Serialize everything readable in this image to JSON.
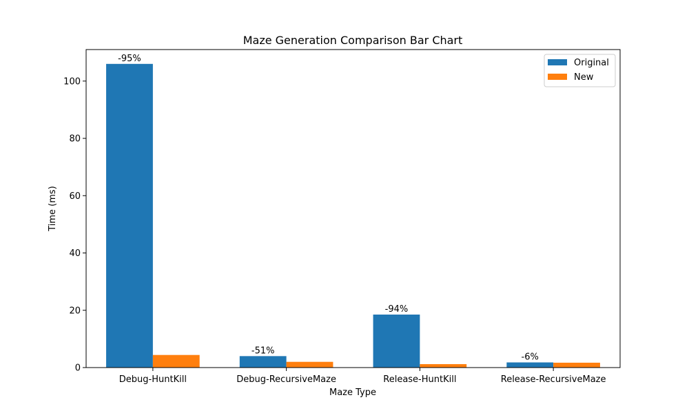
{
  "chart_data": {
    "type": "bar",
    "title": "Maze Generation Comparison Bar Chart",
    "xlabel": "Maze Type",
    "ylabel": "Time (ms)",
    "categories": [
      "Debug-HuntKill",
      "Debug-RecursiveMaze",
      "Release-HuntKill",
      "Release-RecursiveMaze"
    ],
    "series": [
      {
        "name": "Original",
        "color": "#1f77b4",
        "values": [
          106.0,
          4.0,
          18.5,
          1.8
        ]
      },
      {
        "name": "New",
        "color": "#ff7f0e",
        "values": [
          4.4,
          2.0,
          1.2,
          1.7
        ]
      }
    ],
    "annotations": [
      "-95%",
      "-51%",
      "-94%",
      "-6%"
    ],
    "ylim": [
      0,
      111
    ],
    "yticks": [
      0,
      20,
      40,
      60,
      80,
      100
    ],
    "legend_position": "top-right",
    "grid": false
  }
}
